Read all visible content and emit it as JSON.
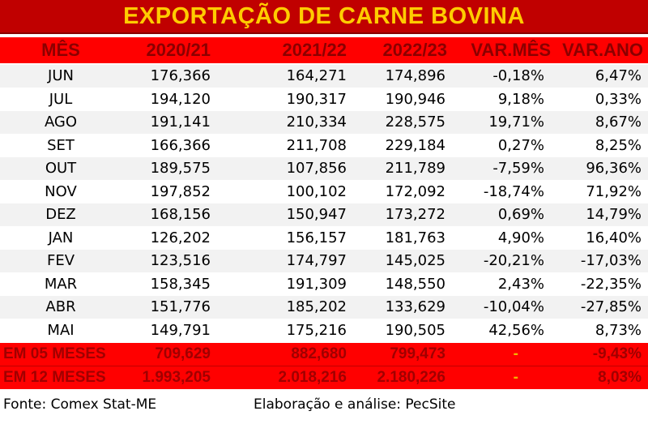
{
  "title": "EXPORTAÇÃO DE CARNE BOVINA",
  "headers": [
    "MÊS",
    "2020/21",
    "2021/22",
    "2022/23",
    "VAR.MÊS",
    "VAR.ANO"
  ],
  "rows": [
    {
      "mes": "JUN",
      "y2020": "176,366",
      "y2021": "164,271",
      "y2022": "174,896",
      "var_mes": "-0,18%",
      "var_ano": "6,47%"
    },
    {
      "mes": "JUL",
      "y2020": "194,120",
      "y2021": "190,317",
      "y2022": "190,946",
      "var_mes": "9,18%",
      "var_ano": "0,33%"
    },
    {
      "mes": "AGO",
      "y2020": "191,141",
      "y2021": "210,334",
      "y2022": "228,575",
      "var_mes": "19,71%",
      "var_ano": "8,67%"
    },
    {
      "mes": "SET",
      "y2020": "166,366",
      "y2021": "211,708",
      "y2022": "229,184",
      "var_mes": "0,27%",
      "var_ano": "8,25%"
    },
    {
      "mes": "OUT",
      "y2020": "189,575",
      "y2021": "107,856",
      "y2022": "211,789",
      "var_mes": "-7,59%",
      "var_ano": "96,36%"
    },
    {
      "mes": "NOV",
      "y2020": "197,852",
      "y2021": "100,102",
      "y2022": "172,092",
      "var_mes": "-18,74%",
      "var_ano": "71,92%"
    },
    {
      "mes": "DEZ",
      "y2020": "168,156",
      "y2021": "150,947",
      "y2022": "173,272",
      "var_mes": "0,69%",
      "var_ano": "14,79%"
    },
    {
      "mes": "JAN",
      "y2020": "126,202",
      "y2021": "156,157",
      "y2022": "181,763",
      "var_mes": "4,90%",
      "var_ano": "16,40%"
    },
    {
      "mes": "FEV",
      "y2020": "123,516",
      "y2021": "174,797",
      "y2022": "145,025",
      "var_mes": "-20,21%",
      "var_ano": "-17,03%"
    },
    {
      "mes": "MAR",
      "y2020": "158,345",
      "y2021": "191,309",
      "y2022": "148,550",
      "var_mes": "2,43%",
      "var_ano": "-22,35%"
    },
    {
      "mes": "ABR",
      "y2020": "151,776",
      "y2021": "185,202",
      "y2022": "133,629",
      "var_mes": "-10,04%",
      "var_ano": "-27,85%"
    },
    {
      "mes": "MAI",
      "y2020": "149,791",
      "y2021": "175,216",
      "y2022": "190,505",
      "var_mes": "42,56%",
      "var_ano": "8,73%"
    }
  ],
  "totals": [
    {
      "label": "EM 05 MESES",
      "y2020": "709,629",
      "y2021": "882,680",
      "y2022": "799,473",
      "var_mes": "-",
      "var_ano": "-9,43%"
    },
    {
      "label": "EM 12 MESES",
      "y2020": "1.993,205",
      "y2021": "2.018,216",
      "y2022": "2.180,226",
      "var_mes": "-",
      "var_ano": "8,03%"
    }
  ],
  "footer": {
    "source": "Fonte: Comex Stat-ME",
    "credit": "Elaboração e análise: PecSite"
  },
  "colors": {
    "title_bg": "#c00000",
    "title_text": "#ffcc00",
    "header_bg": "#ff0000",
    "header_text": "#8b0000",
    "total_text": "#a00000",
    "dash": "#f4b400"
  }
}
